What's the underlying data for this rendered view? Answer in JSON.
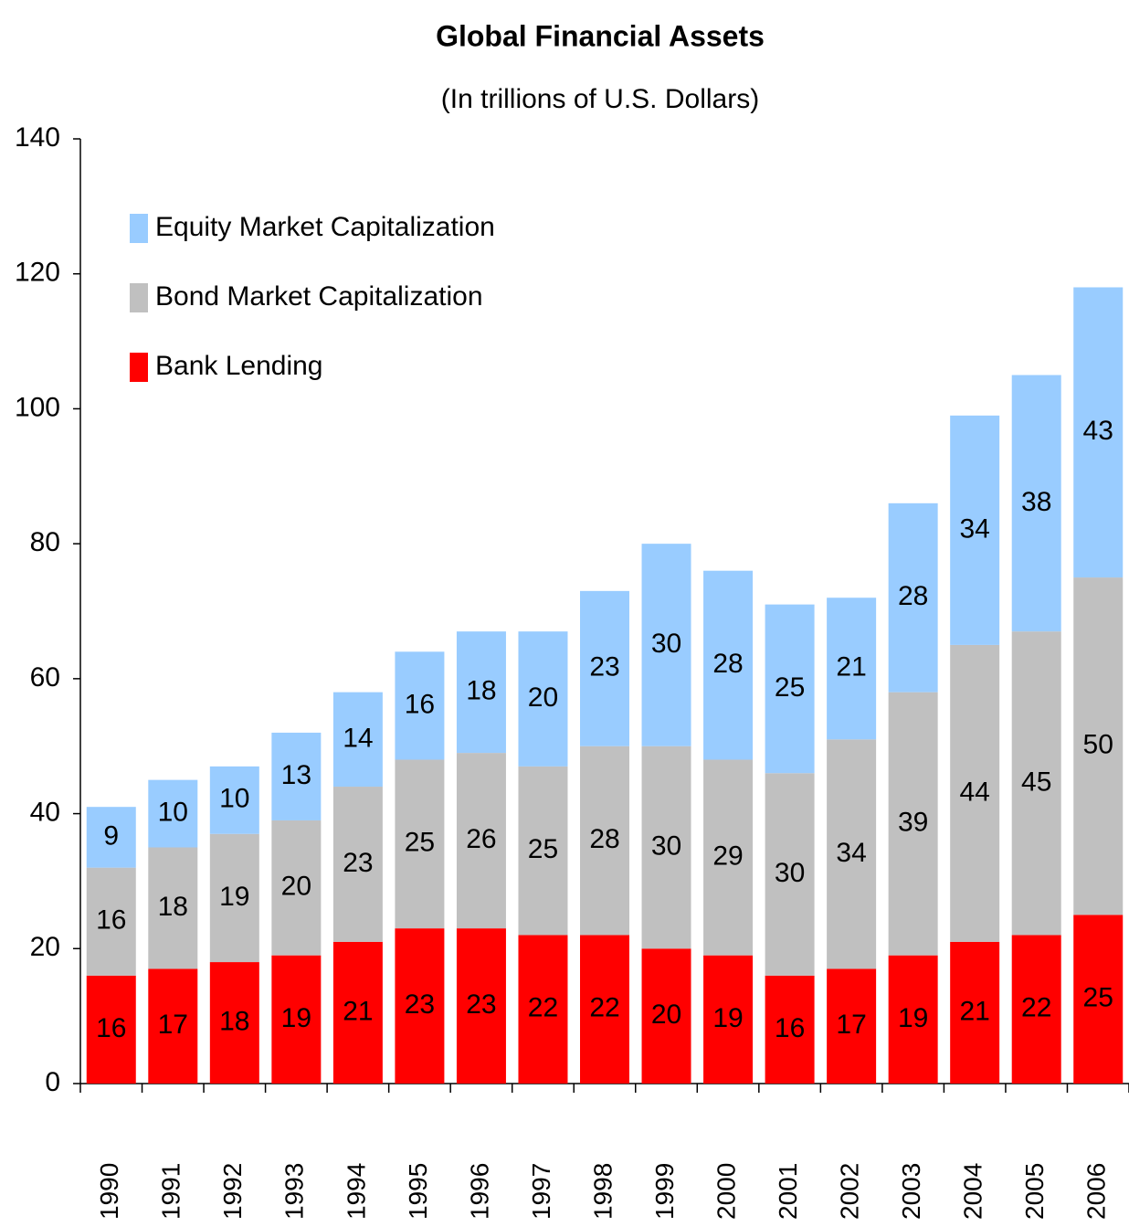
{
  "chart_data": {
    "type": "stacked_bar",
    "title": "Global Financial Assets",
    "subtitle": "(In trillions of U.S. Dollars)",
    "categories": [
      "1990",
      "1991",
      "1992",
      "1993",
      "1994",
      "1995",
      "1996",
      "1997",
      "1998",
      "1999",
      "2000",
      "2001",
      "2002",
      "2003",
      "2004",
      "2005",
      "2006"
    ],
    "series": [
      {
        "name": "Bank Lending",
        "color": "#ff0000",
        "values": [
          16,
          17,
          18,
          19,
          21,
          23,
          23,
          22,
          22,
          20,
          19,
          16,
          17,
          19,
          21,
          22,
          25
        ]
      },
      {
        "name": "Bond Market Capitalization",
        "color": "#c0c0c0",
        "values": [
          16,
          18,
          19,
          20,
          23,
          25,
          26,
          25,
          28,
          30,
          29,
          30,
          34,
          39,
          44,
          45,
          50
        ]
      },
      {
        "name": "Equity Market Capitalization",
        "color": "#99ccff",
        "values": [
          9,
          10,
          10,
          13,
          14,
          16,
          18,
          20,
          23,
          30,
          28,
          25,
          21,
          28,
          34,
          38,
          43
        ]
      }
    ],
    "ylim": [
      0,
      140
    ],
    "yticks": [
      0,
      20,
      40,
      60,
      80,
      100,
      120,
      140
    ],
    "legend": "upper left",
    "grid": false
  }
}
